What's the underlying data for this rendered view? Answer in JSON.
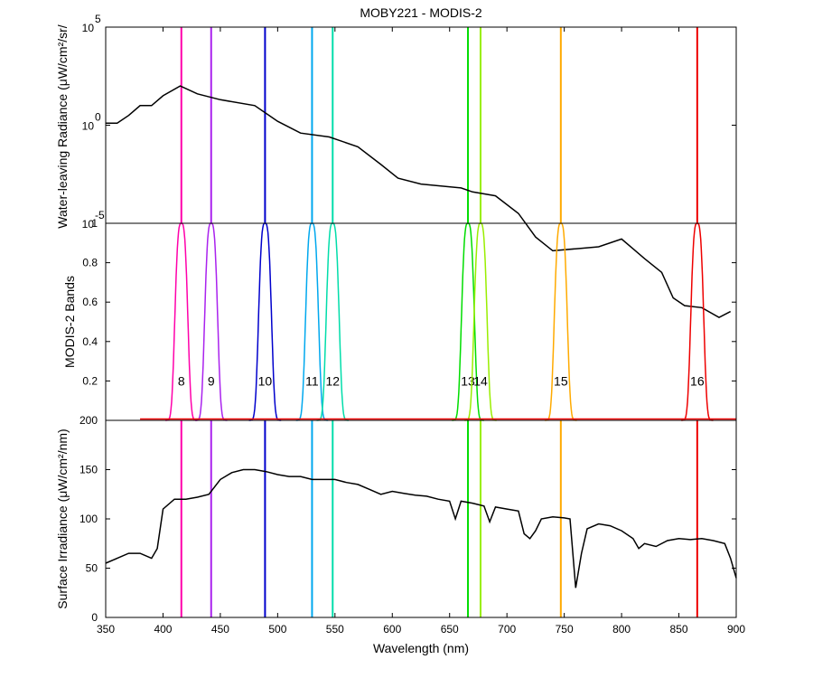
{
  "chart_data": {
    "type": "line",
    "title": "MOBY221 - MODIS-2",
    "xlabel": "Wavelength (nm)",
    "xlim": [
      350,
      900
    ],
    "xticks": [
      350,
      400,
      450,
      500,
      550,
      600,
      650,
      700,
      750,
      800,
      850,
      900
    ],
    "bands": [
      {
        "name": "8",
        "center": 416,
        "color": "#ff00aa"
      },
      {
        "name": "9",
        "center": 442,
        "color": "#aa22ee"
      },
      {
        "name": "10",
        "center": 489,
        "color": "#0000cc"
      },
      {
        "name": "11",
        "center": 530,
        "color": "#00a8ee"
      },
      {
        "name": "12",
        "center": 548,
        "color": "#00ddaa"
      },
      {
        "name": "13",
        "center": 666,
        "color": "#00dd00"
      },
      {
        "name": "14",
        "center": 677,
        "color": "#99ee00"
      },
      {
        "name": "15",
        "center": 747,
        "color": "#ffaa00"
      },
      {
        "name": "16",
        "center": 866,
        "color": "#ee0000"
      }
    ],
    "panels": [
      {
        "name": "radiance",
        "ylabel": "Water-leaving Radiance (μW/cm²/sr/",
        "yscale": "log",
        "ylim_exp": [
          -5,
          5
        ],
        "ytick_labels": [
          {
            "base": "10",
            "exp": "5"
          },
          {
            "base": "10",
            "exp": "0"
          },
          {
            "base": "10",
            "exp": "-5"
          }
        ],
        "series": [
          {
            "color": "#000000",
            "points": [
              [
                350,
                0.1
              ],
              [
                360,
                0.1
              ],
              [
                370,
                0.5
              ],
              [
                380,
                1
              ],
              [
                390,
                1
              ],
              [
                400,
                1.5
              ],
              [
                415,
                2
              ],
              [
                430,
                1.6
              ],
              [
                450,
                1.3
              ],
              [
                480,
                1
              ],
              [
                500,
                0.2
              ],
              [
                520,
                -0.4
              ],
              [
                545,
                -0.6
              ],
              [
                570,
                -1.1
              ],
              [
                590,
                -2
              ],
              [
                605,
                -2.7
              ],
              [
                625,
                -3
              ],
              [
                660,
                -3.2
              ],
              [
                670,
                -3.4
              ],
              [
                690,
                -3.6
              ],
              [
                710,
                -4.5
              ],
              [
                725,
                -5.7
              ],
              [
                740,
                -6.4
              ],
              [
                760,
                -6.3
              ],
              [
                780,
                -6.2
              ],
              [
                800,
                -5.8
              ],
              [
                810,
                -6.3
              ],
              [
                820,
                -6.8
              ],
              [
                835,
                -7.5
              ],
              [
                845,
                -8.8
              ],
              [
                855,
                -9.2
              ],
              [
                870,
                -9.3
              ],
              [
                885,
                -9.8
              ],
              [
                895,
                -9.5
              ]
            ]
          }
        ]
      },
      {
        "name": "bands",
        "ylabel": "MODIS-2 Bands",
        "ylim": [
          0,
          1
        ],
        "yticks": [
          "0.2",
          "0.4",
          "0.6",
          "0.8",
          "1"
        ]
      },
      {
        "name": "irradiance",
        "ylabel": "Surface Irradiance (μW/cm²/nm)",
        "ylim": [
          0,
          200
        ],
        "yticks": [
          "0",
          "50",
          "100",
          "150",
          "200"
        ],
        "series": [
          {
            "color": "#000000",
            "points": [
              [
                350,
                55
              ],
              [
                360,
                60
              ],
              [
                370,
                65
              ],
              [
                380,
                65
              ],
              [
                390,
                60
              ],
              [
                395,
                70
              ],
              [
                400,
                110
              ],
              [
                410,
                120
              ],
              [
                420,
                120
              ],
              [
                430,
                122
              ],
              [
                440,
                125
              ],
              [
                450,
                140
              ],
              [
                460,
                147
              ],
              [
                470,
                150
              ],
              [
                480,
                150
              ],
              [
                490,
                148
              ],
              [
                500,
                145
              ],
              [
                510,
                143
              ],
              [
                520,
                143
              ],
              [
                530,
                140
              ],
              [
                540,
                140
              ],
              [
                550,
                140
              ],
              [
                560,
                137
              ],
              [
                570,
                135
              ],
              [
                580,
                130
              ],
              [
                590,
                125
              ],
              [
                600,
                128
              ],
              [
                610,
                126
              ],
              [
                620,
                124
              ],
              [
                630,
                123
              ],
              [
                640,
                120
              ],
              [
                650,
                118
              ],
              [
                655,
                100
              ],
              [
                660,
                118
              ],
              [
                670,
                116
              ],
              [
                680,
                113
              ],
              [
                685,
                97
              ],
              [
                690,
                112
              ],
              [
                700,
                110
              ],
              [
                710,
                108
              ],
              [
                715,
                85
              ],
              [
                720,
                80
              ],
              [
                725,
                88
              ],
              [
                730,
                100
              ],
              [
                740,
                102
              ],
              [
                750,
                101
              ],
              [
                755,
                100
              ],
              [
                760,
                30
              ],
              [
                765,
                65
              ],
              [
                770,
                90
              ],
              [
                780,
                95
              ],
              [
                790,
                93
              ],
              [
                800,
                88
              ],
              [
                810,
                80
              ],
              [
                815,
                70
              ],
              [
                820,
                75
              ],
              [
                830,
                72
              ],
              [
                840,
                78
              ],
              [
                850,
                80
              ],
              [
                860,
                79
              ],
              [
                870,
                80
              ],
              [
                880,
                78
              ],
              [
                890,
                75
              ],
              [
                895,
                60
              ],
              [
                900,
                40
              ]
            ]
          }
        ]
      }
    ]
  }
}
